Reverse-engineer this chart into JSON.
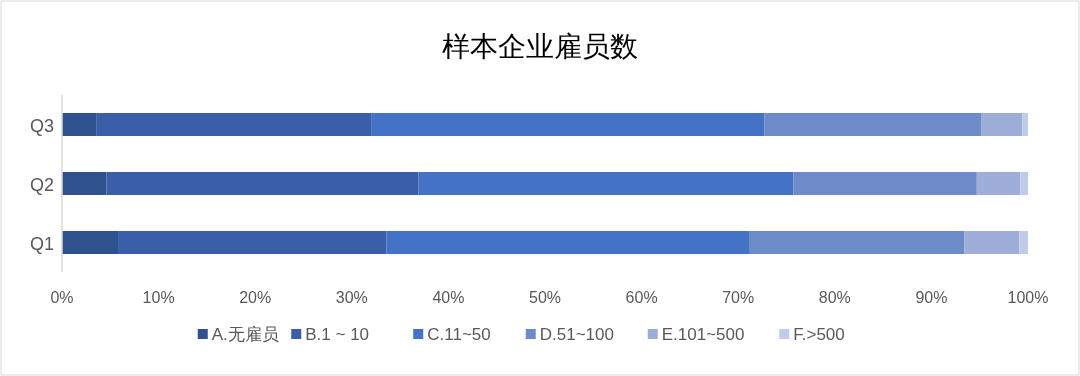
{
  "chart_data": {
    "type": "bar",
    "title": "样本企业雇员数",
    "orientation": "horizontal",
    "stacked": true,
    "categories": [
      "Q3",
      "Q2",
      "Q1"
    ],
    "series": [
      {
        "name": "A.无雇员",
        "color": "#2f528f",
        "values": [
          3.6,
          4.6,
          5.8
        ]
      },
      {
        "name": "B.1 ~ 10",
        "color": "#3a5fa8",
        "values": [
          28.4,
          32.3,
          27.8
        ]
      },
      {
        "name": "C.11~50",
        "color": "#4472c4",
        "values": [
          40.7,
          38.8,
          37.6
        ]
      },
      {
        "name": "D.51~100",
        "color": "#6d8ac9",
        "values": [
          22.5,
          19.0,
          22.2
        ]
      },
      {
        "name": "E.101~500",
        "color": "#9eaed9",
        "values": [
          4.2,
          4.5,
          5.7
        ]
      },
      {
        "name": "F.>500",
        "color": "#c0cbe8",
        "values": [
          0.6,
          0.8,
          0.9
        ]
      }
    ],
    "xlim": [
      0,
      100
    ],
    "xticks": [
      {
        "value": 0,
        "label": "0%"
      },
      {
        "value": 10,
        "label": "10%"
      },
      {
        "value": 20,
        "label": "20%"
      },
      {
        "value": 30,
        "label": "30%"
      },
      {
        "value": 40,
        "label": "40%"
      },
      {
        "value": 50,
        "label": "50%"
      },
      {
        "value": 60,
        "label": "60%"
      },
      {
        "value": 70,
        "label": "70%"
      },
      {
        "value": 80,
        "label": "80%"
      },
      {
        "value": 90,
        "label": "90%"
      },
      {
        "value": 100,
        "label": "100%"
      }
    ],
    "legend": "bottom"
  }
}
